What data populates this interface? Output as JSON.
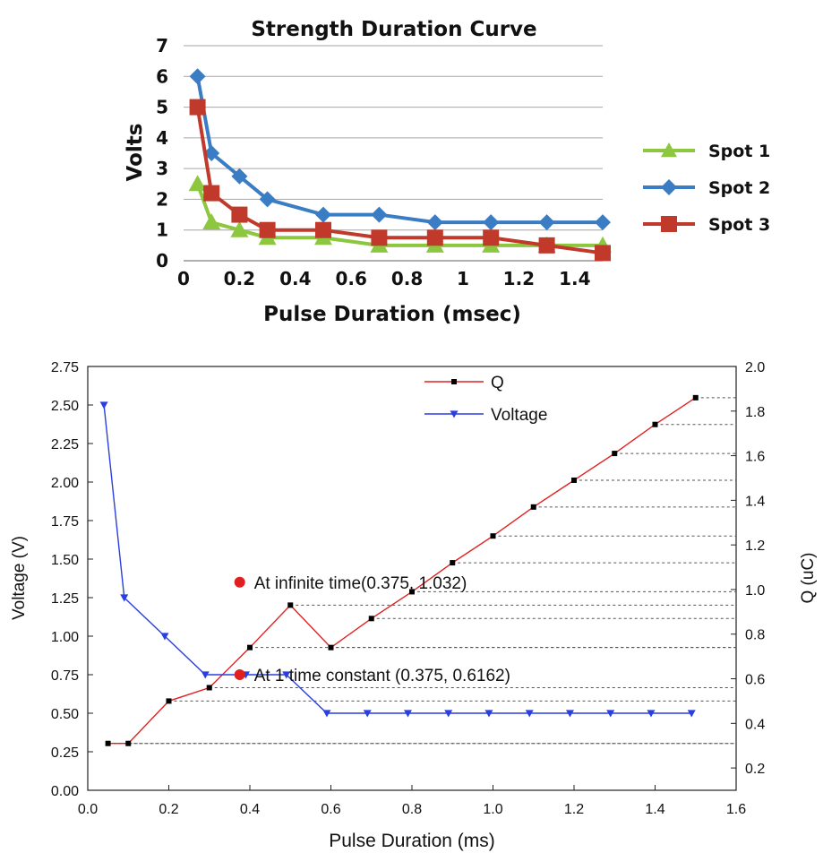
{
  "chart_data": [
    {
      "type": "line",
      "title": "Strength Duration Curve",
      "xlabel": "Pulse Duration (msec)",
      "ylabel": "Volts",
      "xlim": [
        0,
        1.5
      ],
      "ylim": [
        0,
        7
      ],
      "x_ticks": [
        "0",
        "0.2",
        "0.4",
        "0.6",
        "0.8",
        "1",
        "1.2",
        "1.4"
      ],
      "y_ticks": [
        "0",
        "1",
        "2",
        "3",
        "4",
        "5",
        "6",
        "7"
      ],
      "grid": "horizontal",
      "legend_position": "right",
      "series": [
        {
          "name": "Spot 1",
          "color": "#8dc63f",
          "marker": "triangle",
          "x": [
            0.05,
            0.1,
            0.2,
            0.3,
            0.5,
            0.7,
            0.9,
            1.1,
            1.3,
            1.5
          ],
          "values": [
            2.5,
            1.25,
            1.0,
            0.75,
            0.75,
            0.5,
            0.5,
            0.5,
            0.5,
            0.5
          ]
        },
        {
          "name": "Spot 2",
          "color": "#3b7dc4",
          "marker": "diamond",
          "x": [
            0.05,
            0.1,
            0.2,
            0.3,
            0.5,
            0.7,
            0.9,
            1.1,
            1.3,
            1.5
          ],
          "values": [
            6.0,
            3.5,
            2.75,
            2.0,
            1.5,
            1.5,
            1.25,
            1.25,
            1.25,
            1.25
          ]
        },
        {
          "name": "Spot 3",
          "color": "#c0392b",
          "marker": "square",
          "x": [
            0.05,
            0.1,
            0.2,
            0.3,
            0.5,
            0.7,
            0.9,
            1.1,
            1.3,
            1.5
          ],
          "values": [
            5.0,
            2.2,
            1.5,
            1.0,
            1.0,
            0.75,
            0.75,
            0.75,
            0.5,
            0.25
          ]
        }
      ]
    },
    {
      "type": "line",
      "xlabel": "Pulse Duration (ms)",
      "ylabel": "Voltage (V)",
      "y2label": "Q (uC)",
      "xlim": [
        0,
        1.6
      ],
      "ylim": [
        0,
        2.75
      ],
      "y2lim": [
        0.1,
        2.0
      ],
      "x_ticks": [
        "0.0",
        "0.2",
        "0.4",
        "0.6",
        "0.8",
        "1.0",
        "1.2",
        "1.4",
        "1.6"
      ],
      "y_ticks": [
        "0.00",
        "0.25",
        "0.50",
        "0.75",
        "1.00",
        "1.25",
        "1.50",
        "1.75",
        "2.00",
        "2.25",
        "2.50",
        "2.75"
      ],
      "y2_ticks": [
        "0.2",
        "0.4",
        "0.6",
        "0.8",
        "1.0",
        "1.2",
        "1.4",
        "1.6",
        "1.8",
        "2.0"
      ],
      "legend_position": "top-center",
      "series": [
        {
          "name": "Q",
          "color": "#e02020",
          "marker": "square",
          "axis": "right",
          "x": [
            0.05,
            0.1,
            0.2,
            0.3,
            0.4,
            0.5,
            0.6,
            0.7,
            0.8,
            0.9,
            1.0,
            1.1,
            1.2,
            1.3,
            1.4,
            1.5
          ],
          "values": [
            0.31,
            0.31,
            0.5,
            0.56,
            0.74,
            0.93,
            0.74,
            0.87,
            0.99,
            1.12,
            1.24,
            1.37,
            1.49,
            1.61,
            1.74,
            1.86
          ]
        },
        {
          "name": "Voltage",
          "color": "#2a3fe0",
          "marker": "triangle-down",
          "axis": "left",
          "x": [
            0.04,
            0.09,
            0.19,
            0.29,
            0.39,
            0.49,
            0.59,
            0.69,
            0.79,
            0.89,
            0.99,
            1.09,
            1.19,
            1.29,
            1.39,
            1.49
          ],
          "values": [
            2.5,
            1.25,
            1.0,
            0.75,
            0.75,
            0.75,
            0.5,
            0.5,
            0.5,
            0.5,
            0.5,
            0.5,
            0.5,
            0.5,
            0.5,
            0.5
          ]
        }
      ],
      "annotations": [
        {
          "text": "At infinite time(0.375, 1.032)",
          "x": 0.375,
          "y": 1.35,
          "color": "#e02020"
        },
        {
          "text": "At 1 time constant (0.375, 0.6162)",
          "x": 0.375,
          "y": 0.75,
          "color": "#e02020"
        }
      ]
    }
  ]
}
